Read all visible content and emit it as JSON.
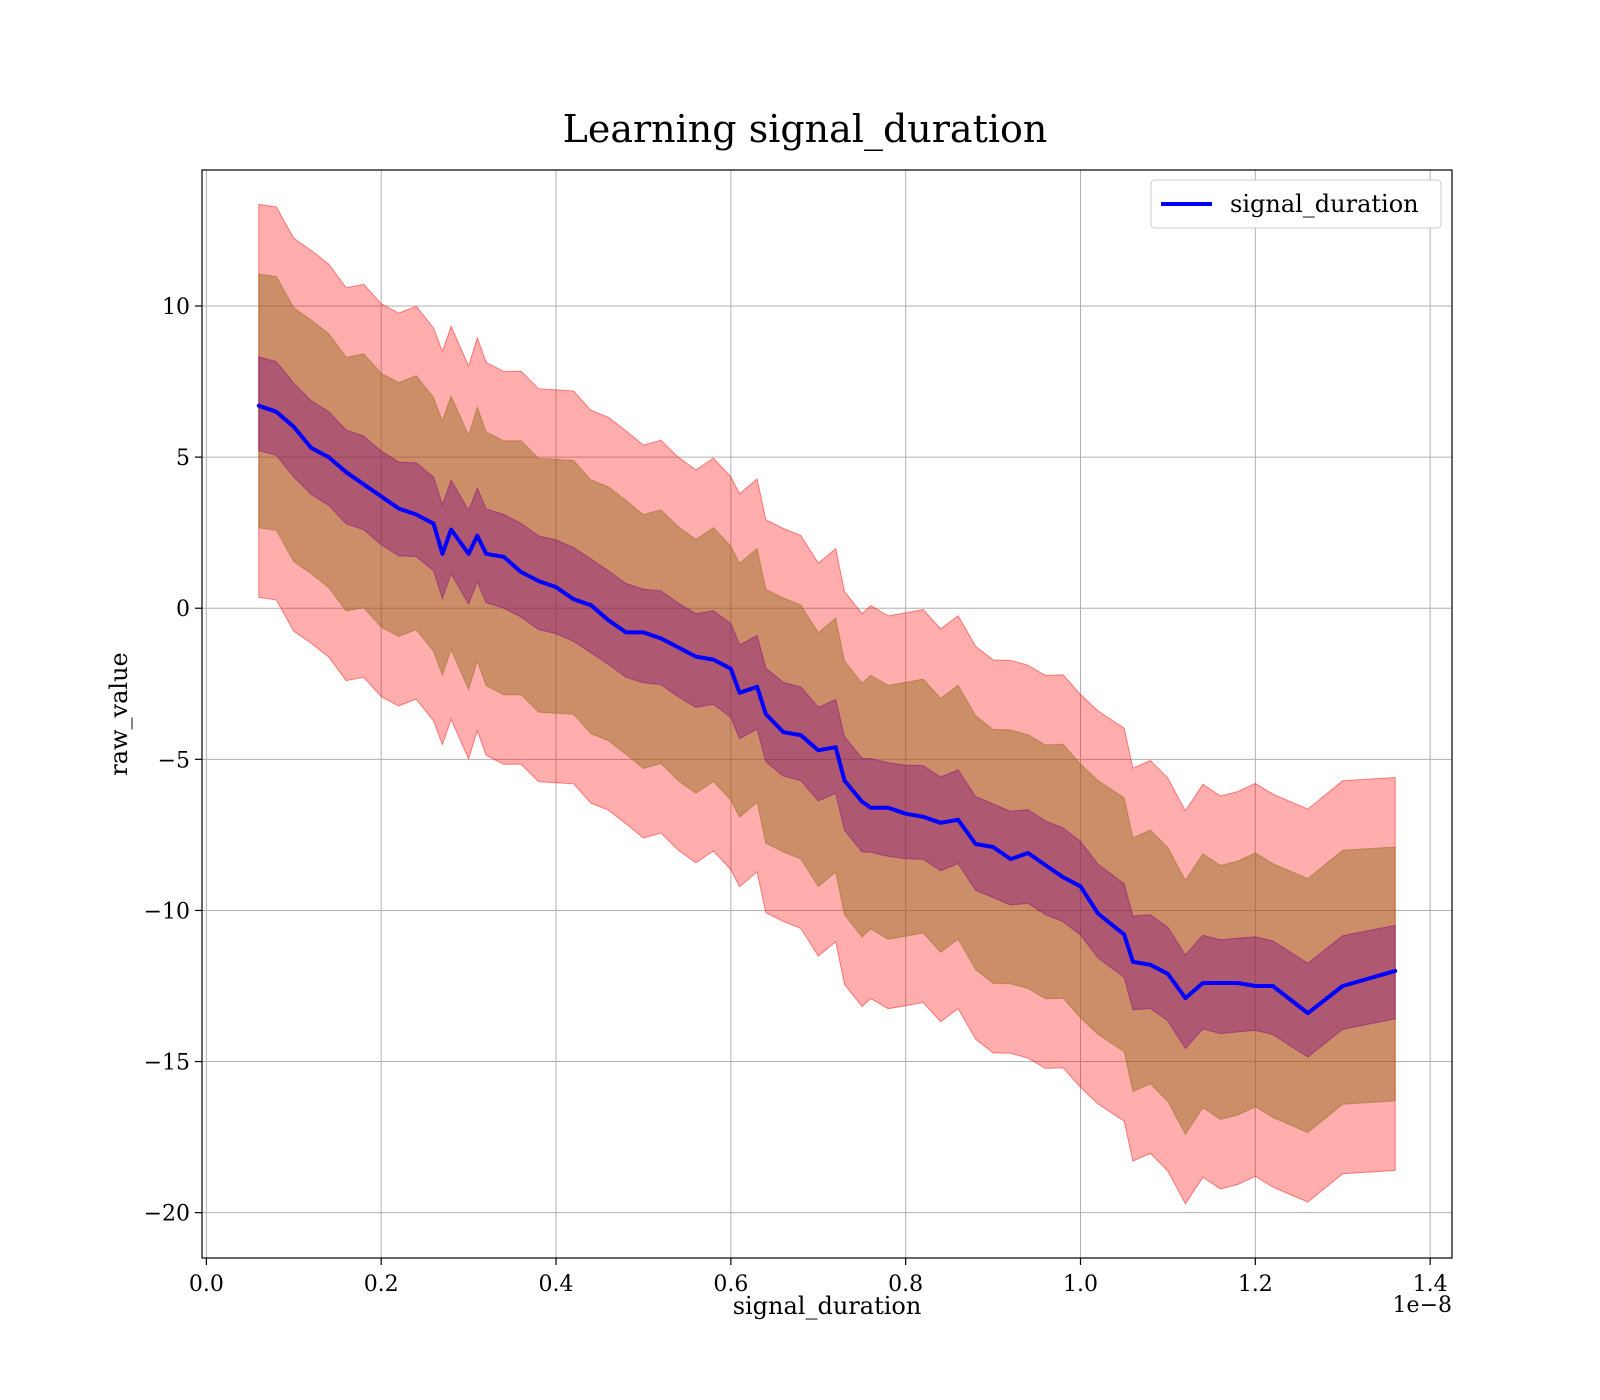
{
  "chart_data": {
    "type": "line",
    "title": "Learning signal_duration",
    "xlabel": "signal_duration",
    "ylabel": "raw_value",
    "x_offset_text": "1e−8",
    "xlim": [
      -0.005,
      1.425
    ],
    "ylim": [
      -21.5,
      14.5
    ],
    "x_ticks": [
      0.0,
      0.2,
      0.4,
      0.6,
      0.8,
      1.0,
      1.2,
      1.4
    ],
    "x_tick_labels": [
      "0.0",
      "0.2",
      "0.4",
      "0.6",
      "0.8",
      "1.0",
      "1.2",
      "1.4"
    ],
    "y_ticks": [
      10,
      5,
      0,
      -5,
      -10,
      -15,
      -20
    ],
    "y_tick_labels": [
      "10",
      "5",
      "0",
      "−5",
      "−10",
      "−15",
      "−20"
    ],
    "grid": true,
    "legend_position": "top-right",
    "colors": {
      "line": "#0000ff",
      "band_outer": "#ff0000",
      "band_middle": "#8b6914",
      "band_inner": "#800080"
    },
    "series": [
      {
        "name": "signal_duration",
        "x": [
          0.06,
          0.08,
          0.1,
          0.12,
          0.14,
          0.16,
          0.18,
          0.2,
          0.22,
          0.24,
          0.26,
          0.27,
          0.28,
          0.3,
          0.31,
          0.32,
          0.34,
          0.36,
          0.38,
          0.4,
          0.42,
          0.44,
          0.46,
          0.48,
          0.5,
          0.52,
          0.54,
          0.56,
          0.58,
          0.6,
          0.61,
          0.63,
          0.64,
          0.66,
          0.68,
          0.7,
          0.72,
          0.73,
          0.75,
          0.76,
          0.78,
          0.8,
          0.82,
          0.84,
          0.86,
          0.88,
          0.9,
          0.92,
          0.94,
          0.96,
          0.98,
          1.0,
          1.02,
          1.05,
          1.06,
          1.08,
          1.1,
          1.12,
          1.14,
          1.16,
          1.18,
          1.2,
          1.22,
          1.26,
          1.3,
          1.36
        ],
        "y": [
          6.7,
          6.5,
          6.0,
          5.3,
          5.0,
          4.5,
          4.1,
          3.7,
          3.3,
          3.1,
          2.8,
          1.8,
          2.6,
          1.8,
          2.4,
          1.8,
          1.7,
          1.2,
          0.9,
          0.7,
          0.3,
          0.1,
          -0.4,
          -0.8,
          -0.8,
          -1.0,
          -1.3,
          -1.6,
          -1.7,
          -2.0,
          -2.8,
          -2.6,
          -3.5,
          -4.1,
          -4.2,
          -4.7,
          -4.6,
          -5.7,
          -6.4,
          -6.6,
          -6.6,
          -6.8,
          -6.9,
          -7.1,
          -7.0,
          -7.8,
          -7.9,
          -8.3,
          -8.1,
          -8.5,
          -8.9,
          -9.2,
          -10.1,
          -10.8,
          -11.7,
          -11.8,
          -12.1,
          -12.9,
          -12.4,
          -12.4,
          -12.4,
          -12.5,
          -12.5,
          -13.4,
          -12.5,
          -12.0
        ]
      }
    ],
    "bands": [
      {
        "level": "outer",
        "half_width_start": 6.5,
        "half_width_end": 6.5
      },
      {
        "level": "middle",
        "half_width_start": 4.2,
        "half_width_end": 4.2
      },
      {
        "level": "inner",
        "half_width_start": 1.55,
        "half_width_end": 1.55
      }
    ]
  }
}
